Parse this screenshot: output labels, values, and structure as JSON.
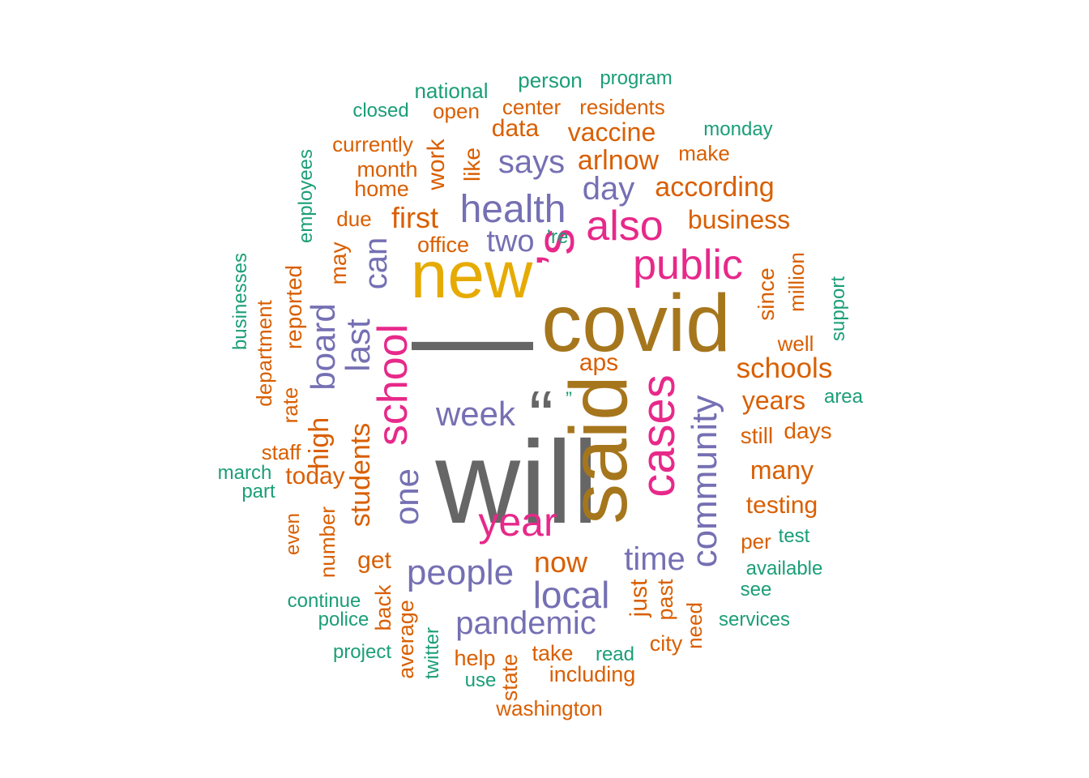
{
  "palette": {
    "gray": "#666666",
    "olive": "#A6761D",
    "gold": "#E6AB02",
    "magenta": "#E7298A",
    "purple": "#7570B3",
    "orange": "#D95F02",
    "teal": "#1B9E77"
  },
  "words": [
    {
      "text": "—",
      "color": "gray",
      "weight": 1.0
    },
    {
      "text": "will",
      "color": "gray",
      "weight": 0.95
    },
    {
      "text": "covid",
      "color": "olive",
      "weight": 0.85
    },
    {
      "text": "said",
      "color": "olive",
      "weight": 0.85
    },
    {
      "text": "“",
      "color": "gray",
      "weight": 0.8
    },
    {
      "text": "new",
      "color": "gold",
      "weight": 0.7
    },
    {
      "text": "’s",
      "color": "magenta",
      "weight": 0.6
    },
    {
      "text": "cases",
      "color": "magenta",
      "weight": 0.6
    },
    {
      "text": "school",
      "color": "magenta",
      "weight": 0.55
    },
    {
      "text": "public",
      "color": "magenta",
      "weight": 0.5
    },
    {
      "text": "also",
      "color": "magenta",
      "weight": 0.5
    },
    {
      "text": "year",
      "color": "magenta",
      "weight": 0.5
    },
    {
      "text": "health",
      "color": "purple",
      "weight": 0.45
    },
    {
      "text": "community",
      "color": "purple",
      "weight": 0.42
    },
    {
      "text": "people",
      "color": "purple",
      "weight": 0.4
    },
    {
      "text": "local",
      "color": "purple",
      "weight": 0.4
    },
    {
      "text": "pandemic",
      "color": "purple",
      "weight": 0.38
    },
    {
      "text": "week",
      "color": "purple",
      "weight": 0.37
    },
    {
      "text": "one",
      "color": "purple",
      "weight": 0.37
    },
    {
      "text": "last",
      "color": "purple",
      "weight": 0.36
    },
    {
      "text": "board",
      "color": "purple",
      "weight": 0.36
    },
    {
      "text": "time",
      "color": "purple",
      "weight": 0.34
    },
    {
      "text": "can",
      "color": "purple",
      "weight": 0.34
    },
    {
      "text": "says",
      "color": "purple",
      "weight": 0.33
    },
    {
      "text": "day",
      "color": "purple",
      "weight": 0.33
    },
    {
      "text": "two",
      "color": "purple",
      "weight": 0.33
    },
    {
      "text": "first",
      "color": "orange",
      "weight": 0.31
    },
    {
      "text": "now",
      "color": "orange",
      "weight": 0.31
    },
    {
      "text": "students",
      "color": "orange",
      "weight": 0.31
    },
    {
      "text": "high",
      "color": "orange",
      "weight": 0.3
    },
    {
      "text": "schools",
      "color": "orange",
      "weight": 0.3
    },
    {
      "text": "according",
      "color": "orange",
      "weight": 0.3
    },
    {
      "text": "business",
      "color": "orange",
      "weight": 0.29
    },
    {
      "text": "many",
      "color": "orange",
      "weight": 0.29
    },
    {
      "text": "years",
      "color": "orange",
      "weight": 0.29
    },
    {
      "text": "arlnow",
      "color": "orange",
      "weight": 0.28
    },
    {
      "text": "vaccine",
      "color": "orange",
      "weight": 0.28
    },
    {
      "text": "testing",
      "color": "orange",
      "weight": 0.27
    },
    {
      "text": "today",
      "color": "orange",
      "weight": 0.27
    },
    {
      "text": "just",
      "color": "orange",
      "weight": 0.27
    },
    {
      "text": "aps",
      "color": "orange",
      "weight": 0.27
    },
    {
      "text": "data",
      "color": "orange",
      "weight": 0.26
    },
    {
      "text": "get",
      "color": "orange",
      "weight": 0.26
    },
    {
      "text": "work",
      "color": "orange",
      "weight": 0.26
    },
    {
      "text": "like",
      "color": "orange",
      "weight": 0.26
    },
    {
      "text": "may",
      "color": "orange",
      "weight": 0.26
    },
    {
      "text": "reported",
      "color": "orange",
      "weight": 0.25
    },
    {
      "text": "since",
      "color": "orange",
      "weight": 0.25
    },
    {
      "text": "still",
      "color": "orange",
      "weight": 0.25
    },
    {
      "text": "days",
      "color": "orange",
      "weight": 0.24
    },
    {
      "text": "department",
      "color": "orange",
      "weight": 0.24
    },
    {
      "text": "number",
      "color": "orange",
      "weight": 0.24
    },
    {
      "text": "rate",
      "color": "orange",
      "weight": 0.24
    },
    {
      "text": "staff",
      "color": "orange",
      "weight": 0.24
    },
    {
      "text": "office",
      "color": "orange",
      "weight": 0.23
    },
    {
      "text": "month",
      "color": "orange",
      "weight": 0.23
    },
    {
      "text": "home",
      "color": "orange",
      "weight": 0.23
    },
    {
      "text": "currently",
      "color": "orange",
      "weight": 0.23
    },
    {
      "text": "open",
      "color": "orange",
      "weight": 0.23
    },
    {
      "text": "center",
      "color": "orange",
      "weight": 0.23
    },
    {
      "text": "residents",
      "color": "orange",
      "weight": 0.23
    },
    {
      "text": "make",
      "color": "orange",
      "weight": 0.22
    },
    {
      "text": "due",
      "color": "orange",
      "weight": 0.22
    },
    {
      "text": "million",
      "color": "orange",
      "weight": 0.22
    },
    {
      "text": "well",
      "color": "orange",
      "weight": 0.22
    },
    {
      "text": "per",
      "color": "orange",
      "weight": 0.22
    },
    {
      "text": "back",
      "color": "orange",
      "weight": 0.23
    },
    {
      "text": "average",
      "color": "orange",
      "weight": 0.23
    },
    {
      "text": "past",
      "color": "orange",
      "weight": 0.23
    },
    {
      "text": "need",
      "color": "orange",
      "weight": 0.23
    },
    {
      "text": "city",
      "color": "orange",
      "weight": 0.23
    },
    {
      "text": "help",
      "color": "orange",
      "weight": 0.23
    },
    {
      "text": "state",
      "color": "orange",
      "weight": 0.23
    },
    {
      "text": "take",
      "color": "orange",
      "weight": 0.23
    },
    {
      "text": "including",
      "color": "orange",
      "weight": 0.23
    },
    {
      "text": "washington",
      "color": "orange",
      "weight": 0.23
    },
    {
      "text": "even",
      "color": "orange",
      "weight": 0.22
    },
    {
      "text": "’re",
      "color": "teal",
      "weight": 0.2
    },
    {
      "text": "”",
      "color": "teal",
      "weight": 0.2
    },
    {
      "text": "national",
      "color": "teal",
      "weight": 0.22
    },
    {
      "text": "person",
      "color": "teal",
      "weight": 0.22
    },
    {
      "text": "program",
      "color": "teal",
      "weight": 0.21
    },
    {
      "text": "closed",
      "color": "teal",
      "weight": 0.21
    },
    {
      "text": "monday",
      "color": "teal",
      "weight": 0.21
    },
    {
      "text": "employees",
      "color": "teal",
      "weight": 0.21
    },
    {
      "text": "businesses",
      "color": "teal",
      "weight": 0.21
    },
    {
      "text": "support",
      "color": "teal",
      "weight": 0.21
    },
    {
      "text": "area",
      "color": "teal",
      "weight": 0.21
    },
    {
      "text": "march",
      "color": "teal",
      "weight": 0.21
    },
    {
      "text": "part",
      "color": "teal",
      "weight": 0.21
    },
    {
      "text": "test",
      "color": "teal",
      "weight": 0.21
    },
    {
      "text": "available",
      "color": "teal",
      "weight": 0.21
    },
    {
      "text": "see",
      "color": "teal",
      "weight": 0.21
    },
    {
      "text": "continue",
      "color": "teal",
      "weight": 0.21
    },
    {
      "text": "police",
      "color": "teal",
      "weight": 0.21
    },
    {
      "text": "services",
      "color": "teal",
      "weight": 0.21
    },
    {
      "text": "project",
      "color": "teal",
      "weight": 0.21
    },
    {
      "text": "twitter",
      "color": "teal",
      "weight": 0.21
    },
    {
      "text": "read",
      "color": "teal",
      "weight": 0.21
    },
    {
      "text": "use",
      "color": "teal",
      "weight": 0.21
    }
  ]
}
